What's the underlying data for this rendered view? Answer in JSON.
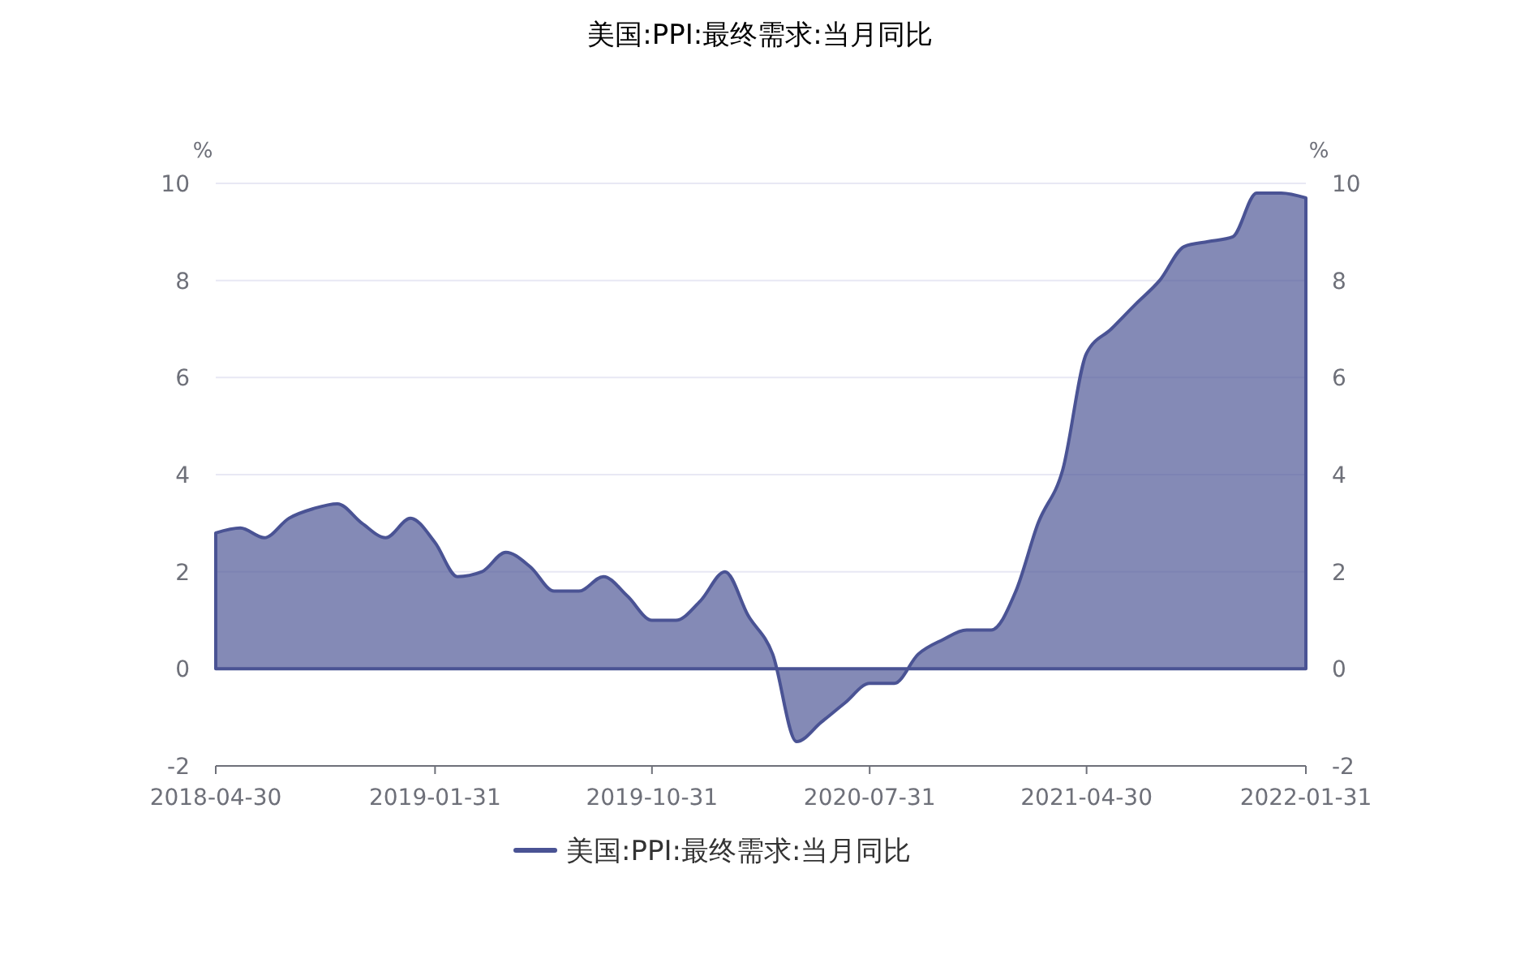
{
  "chart_data": {
    "type": "area",
    "title": "美国:PPI:最终需求:当月同比",
    "x": [
      "2018-04-30",
      "2018-05-31",
      "2018-06-30",
      "2018-07-31",
      "2018-08-31",
      "2018-09-30",
      "2018-10-31",
      "2018-11-30",
      "2018-12-31",
      "2019-01-31",
      "2019-02-28",
      "2019-03-31",
      "2019-04-30",
      "2019-05-31",
      "2019-06-30",
      "2019-07-31",
      "2019-08-31",
      "2019-09-30",
      "2019-10-31",
      "2019-11-30",
      "2019-12-31",
      "2020-01-31",
      "2020-02-29",
      "2020-03-31",
      "2020-04-30",
      "2020-05-31",
      "2020-06-30",
      "2020-07-31",
      "2020-08-31",
      "2020-09-30",
      "2020-10-31",
      "2020-11-30",
      "2020-12-31",
      "2021-01-31",
      "2021-02-28",
      "2021-03-31",
      "2021-04-30",
      "2021-05-31",
      "2021-06-30",
      "2021-07-31",
      "2021-08-31",
      "2021-09-30",
      "2021-10-31",
      "2021-11-30",
      "2021-12-31",
      "2022-01-31"
    ],
    "series": [
      {
        "name": "美国:PPI:最终需求:当月同比",
        "color": "#4a5394",
        "values": [
          2.8,
          2.9,
          2.7,
          3.1,
          3.3,
          3.4,
          3.0,
          2.7,
          3.1,
          2.6,
          1.9,
          2.0,
          2.4,
          2.1,
          1.6,
          1.6,
          1.9,
          1.5,
          1.0,
          1.0,
          1.4,
          2.0,
          1.1,
          0.3,
          -1.5,
          -1.1,
          -0.7,
          -0.3,
          -0.3,
          0.3,
          0.6,
          0.8,
          0.8,
          1.6,
          3.0,
          4.1,
          6.5,
          7.0,
          7.5,
          8.0,
          8.7,
          8.8,
          8.9,
          9.8,
          9.8,
          9.7
        ]
      }
    ],
    "xlim": [
      "2018-04-30",
      "2022-01-31"
    ],
    "xticks": [
      {
        "value": "2018-04-30",
        "label": "2018-04-30"
      },
      {
        "value": "2019-01-31",
        "label": "2019-01-31"
      },
      {
        "value": "2019-10-31",
        "label": "2019-10-31"
      },
      {
        "value": "2020-07-31",
        "label": "2020-07-31"
      },
      {
        "value": "2021-04-30",
        "label": "2021-04-30"
      },
      {
        "value": "2022-01-31",
        "label": "2022-01-31"
      }
    ],
    "ylim": [
      -2,
      10
    ],
    "yticks": [
      -2,
      0,
      2,
      4,
      6,
      8,
      10
    ],
    "y2lim": [
      -2,
      10
    ],
    "y2ticks": [
      -2,
      0,
      2,
      4,
      6,
      8,
      10
    ],
    "ylabel": "%",
    "y2label": "%",
    "grid": "y",
    "legend": "bottom"
  }
}
